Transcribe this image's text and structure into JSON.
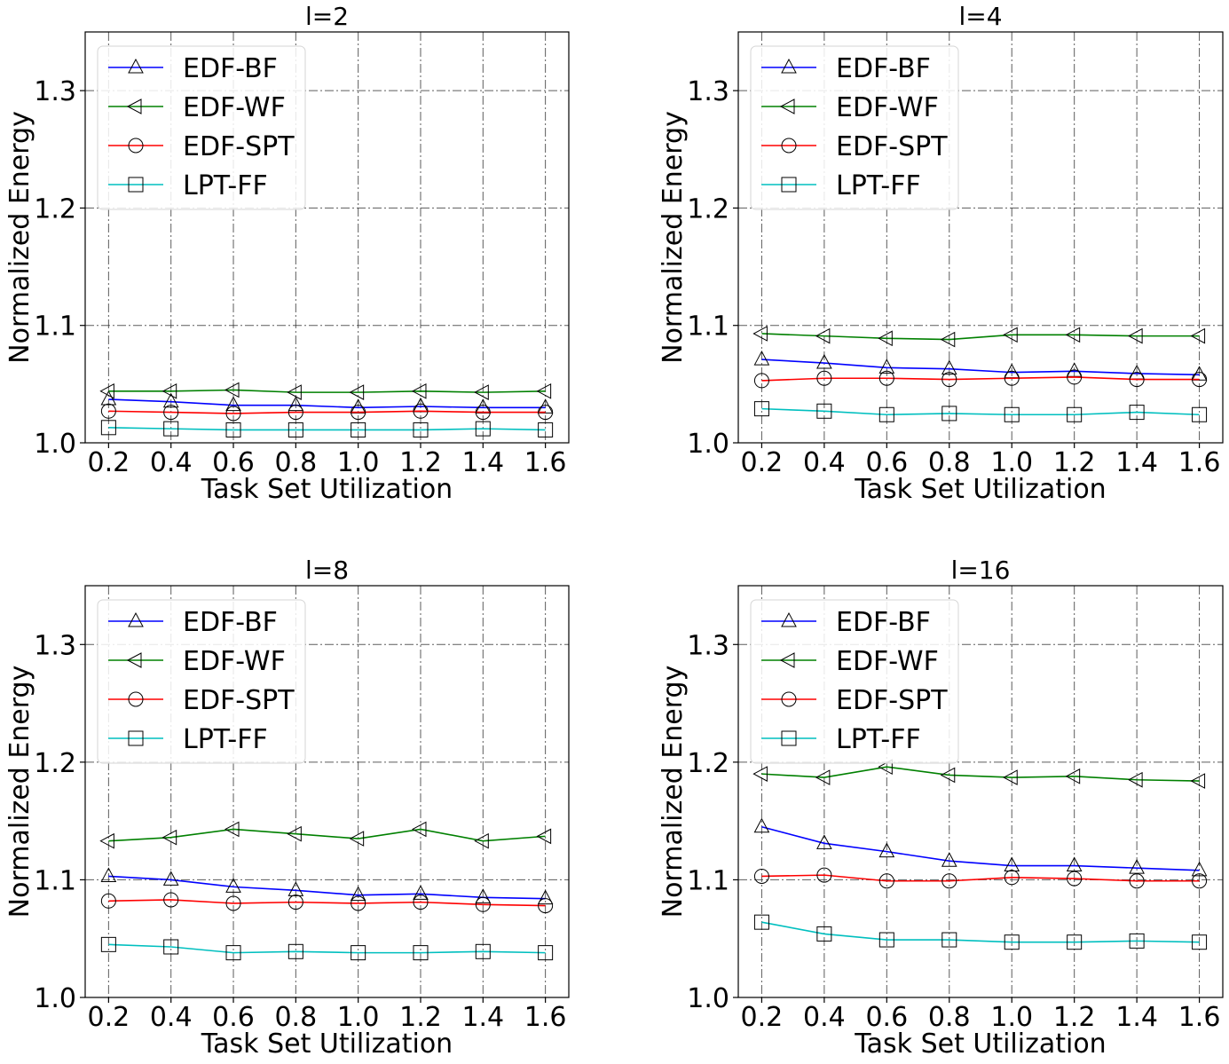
{
  "chart_data": [
    {
      "type": "line",
      "title": "l=2",
      "xlabel": "Task Set Utilization",
      "ylabel": "Normalized Energy",
      "x": [
        0.2,
        0.4,
        0.6,
        0.8,
        1.0,
        1.2,
        1.4,
        1.6
      ],
      "xticks": [
        "0.2",
        "0.4",
        "0.6",
        "0.8",
        "1.0",
        "1.2",
        "1.4",
        "1.6"
      ],
      "xlim": [
        0.125,
        1.675
      ],
      "ylim": [
        1.0,
        1.35
      ],
      "yticks": [
        "1.0",
        "1.1",
        "1.2",
        "1.3"
      ],
      "grid": true,
      "legend_position": "upper-left",
      "series": [
        {
          "name": "EDF-BF",
          "color": "#0000ff",
          "marker": "triangle-up",
          "values": [
            1.037,
            1.035,
            1.032,
            1.032,
            1.03,
            1.031,
            1.03,
            1.03
          ]
        },
        {
          "name": "EDF-WF",
          "color": "#008000",
          "marker": "triangle-left",
          "values": [
            1.044,
            1.044,
            1.045,
            1.043,
            1.043,
            1.044,
            1.043,
            1.044
          ]
        },
        {
          "name": "EDF-SPT",
          "color": "#ff0000",
          "marker": "circle",
          "values": [
            1.027,
            1.026,
            1.025,
            1.026,
            1.026,
            1.027,
            1.026,
            1.026
          ]
        },
        {
          "name": "LPT-FF",
          "color": "#00bfbf",
          "marker": "square",
          "values": [
            1.013,
            1.012,
            1.011,
            1.011,
            1.011,
            1.011,
            1.012,
            1.011
          ]
        }
      ]
    },
    {
      "type": "line",
      "title": "l=4",
      "xlabel": "Task Set Utilization",
      "ylabel": "Normalized Energy",
      "x": [
        0.2,
        0.4,
        0.6,
        0.8,
        1.0,
        1.2,
        1.4,
        1.6
      ],
      "xticks": [
        "0.2",
        "0.4",
        "0.6",
        "0.8",
        "1.0",
        "1.2",
        "1.4",
        "1.6"
      ],
      "xlim": [
        0.125,
        1.675
      ],
      "ylim": [
        1.0,
        1.35
      ],
      "yticks": [
        "1.0",
        "1.1",
        "1.2",
        "1.3"
      ],
      "grid": true,
      "legend_position": "upper-left",
      "series": [
        {
          "name": "EDF-BF",
          "color": "#0000ff",
          "marker": "triangle-up",
          "values": [
            1.071,
            1.068,
            1.064,
            1.063,
            1.06,
            1.061,
            1.059,
            1.058
          ]
        },
        {
          "name": "EDF-WF",
          "color": "#008000",
          "marker": "triangle-left",
          "values": [
            1.093,
            1.091,
            1.089,
            1.088,
            1.092,
            1.092,
            1.091,
            1.091
          ]
        },
        {
          "name": "EDF-SPT",
          "color": "#ff0000",
          "marker": "circle",
          "values": [
            1.053,
            1.055,
            1.055,
            1.054,
            1.055,
            1.056,
            1.054,
            1.054
          ]
        },
        {
          "name": "LPT-FF",
          "color": "#00bfbf",
          "marker": "square",
          "values": [
            1.029,
            1.027,
            1.024,
            1.025,
            1.024,
            1.024,
            1.026,
            1.024
          ]
        }
      ]
    },
    {
      "type": "line",
      "title": "l=8",
      "xlabel": "Task Set Utilization",
      "ylabel": "Normalized Energy",
      "x": [
        0.2,
        0.4,
        0.6,
        0.8,
        1.0,
        1.2,
        1.4,
        1.6
      ],
      "xticks": [
        "0.2",
        "0.4",
        "0.6",
        "0.8",
        "1.0",
        "1.2",
        "1.4",
        "1.6"
      ],
      "xlim": [
        0.125,
        1.675
      ],
      "ylim": [
        1.0,
        1.35
      ],
      "yticks": [
        "1.0",
        "1.1",
        "1.2",
        "1.3"
      ],
      "grid": true,
      "legend_position": "upper-left",
      "series": [
        {
          "name": "EDF-BF",
          "color": "#0000ff",
          "marker": "triangle-up",
          "values": [
            1.103,
            1.1,
            1.094,
            1.091,
            1.087,
            1.088,
            1.085,
            1.084
          ]
        },
        {
          "name": "EDF-WF",
          "color": "#008000",
          "marker": "triangle-left",
          "values": [
            1.133,
            1.136,
            1.143,
            1.139,
            1.135,
            1.143,
            1.133,
            1.137
          ]
        },
        {
          "name": "EDF-SPT",
          "color": "#ff0000",
          "marker": "circle",
          "values": [
            1.082,
            1.083,
            1.08,
            1.081,
            1.08,
            1.081,
            1.079,
            1.078
          ]
        },
        {
          "name": "LPT-FF",
          "color": "#00bfbf",
          "marker": "square",
          "values": [
            1.045,
            1.043,
            1.038,
            1.039,
            1.038,
            1.038,
            1.039,
            1.038
          ]
        }
      ]
    },
    {
      "type": "line",
      "title": "l=16",
      "xlabel": "Task Set Utilization",
      "ylabel": "Normalized Energy",
      "x": [
        0.2,
        0.4,
        0.6,
        0.8,
        1.0,
        1.2,
        1.4,
        1.6
      ],
      "xticks": [
        "0.2",
        "0.4",
        "0.6",
        "0.8",
        "1.0",
        "1.2",
        "1.4",
        "1.6"
      ],
      "xlim": [
        0.125,
        1.675
      ],
      "ylim": [
        1.0,
        1.35
      ],
      "yticks": [
        "1.0",
        "1.1",
        "1.2",
        "1.3"
      ],
      "grid": true,
      "legend_position": "upper-left",
      "series": [
        {
          "name": "EDF-BF",
          "color": "#0000ff",
          "marker": "triangle-up",
          "values": [
            1.145,
            1.131,
            1.124,
            1.116,
            1.112,
            1.112,
            1.11,
            1.108
          ]
        },
        {
          "name": "EDF-WF",
          "color": "#008000",
          "marker": "triangle-left",
          "values": [
            1.19,
            1.187,
            1.196,
            1.189,
            1.187,
            1.188,
            1.185,
            1.184
          ]
        },
        {
          "name": "EDF-SPT",
          "color": "#ff0000",
          "marker": "circle",
          "values": [
            1.103,
            1.104,
            1.099,
            1.099,
            1.102,
            1.101,
            1.099,
            1.099
          ]
        },
        {
          "name": "LPT-FF",
          "color": "#00bfbf",
          "marker": "square",
          "values": [
            1.064,
            1.054,
            1.049,
            1.049,
            1.047,
            1.047,
            1.048,
            1.047
          ]
        }
      ]
    }
  ]
}
